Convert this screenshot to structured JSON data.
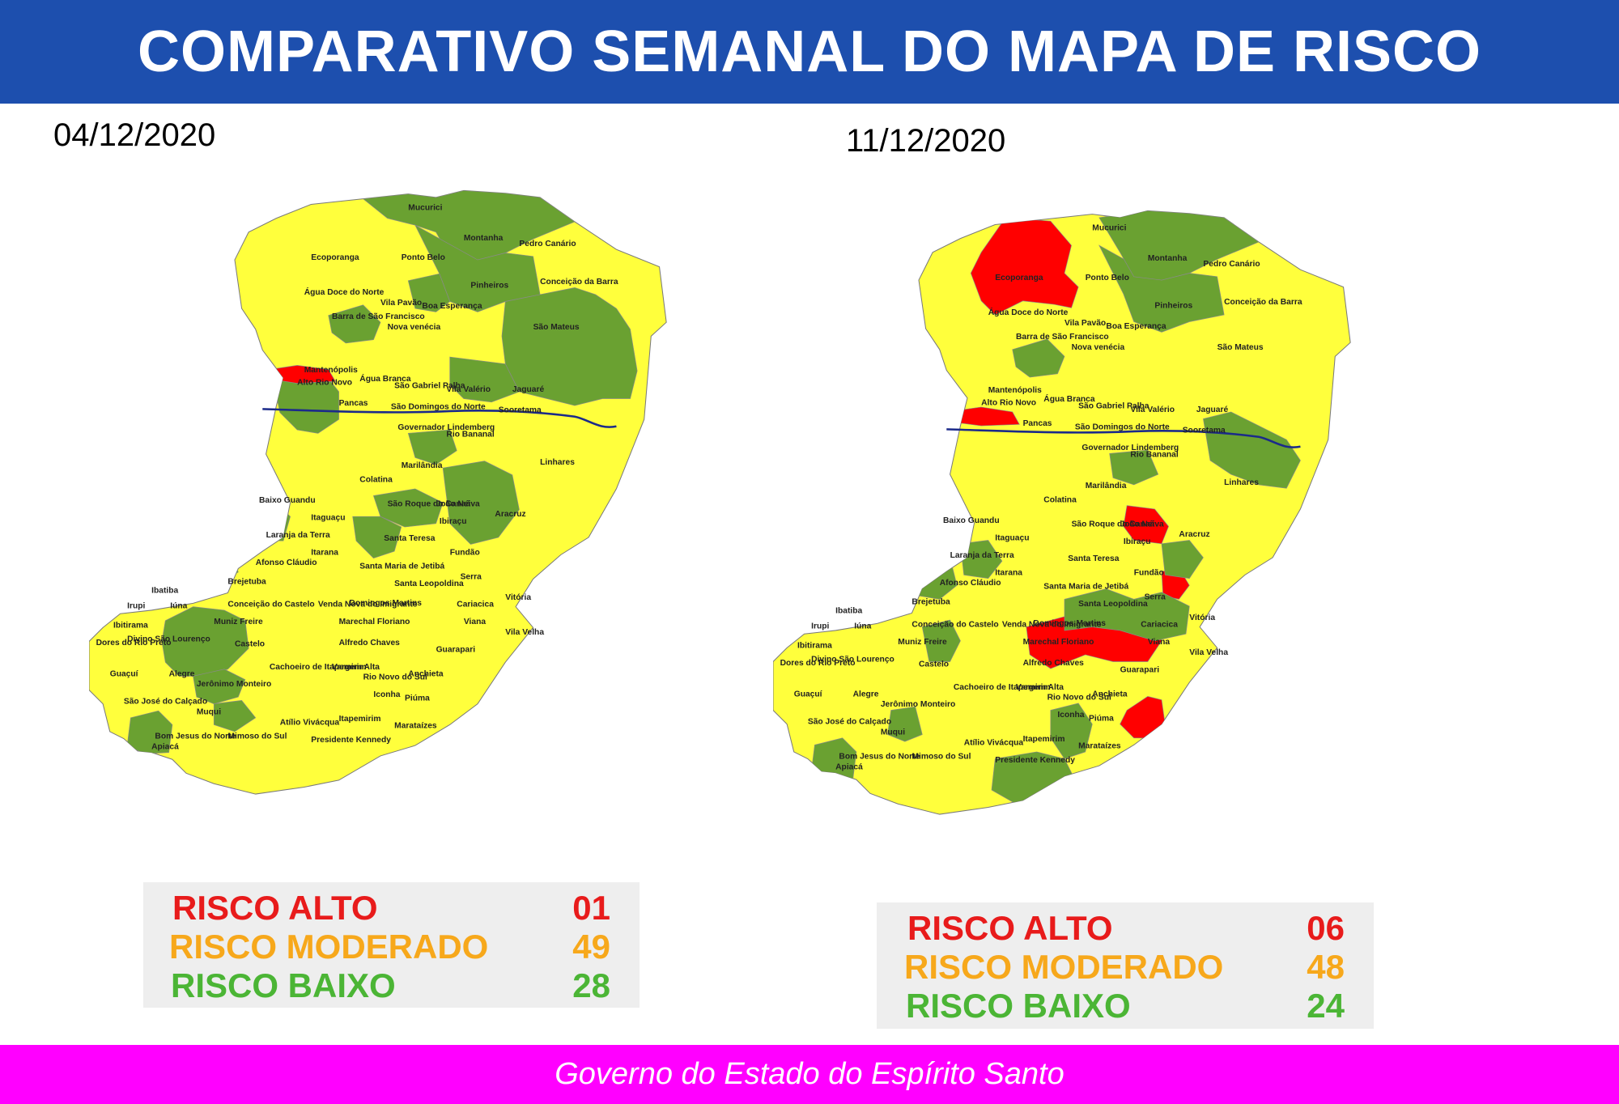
{
  "header": {
    "title": "COMPARATIVO SEMANAL DO MAPA DE RISCO"
  },
  "colors": {
    "header": "#1d4fae",
    "footer": "#ff00ff",
    "alto": "#e81b1b",
    "moderado": "#f7a81b",
    "baixo": "#4bb535",
    "map_yellow": "#ffff3c",
    "map_green": "#6aa131",
    "map_red": "#ff0000"
  },
  "maps": [
    {
      "date": "04/12/2020",
      "legend": [
        {
          "label": "RISCO ALTO",
          "value": "01"
        },
        {
          "label": "RISCO MODERADO",
          "value": "49"
        },
        {
          "label": "RISCO BAIXO",
          "value": "28"
        }
      ],
      "labels": [
        "Mucurici",
        "Montanha",
        "Pedro Canário",
        "Ecoporanga",
        "Ponto Belo",
        "Pinheiros",
        "Conceição da Barra",
        "Água Doce do Norte",
        "Vila Pavão",
        "Boa Esperança",
        "Barra de São Francisco",
        "Nova venécia",
        "São Mateus",
        "Mantenópolis",
        "Alto Rio Novo",
        "Água Branca",
        "São Gabriel Palha",
        "Vila Valério",
        "Jaguaré",
        "Pancas",
        "São Domingos do Norte",
        "Sooretama",
        "Governador Lindemberg",
        "Rio Bananal",
        "Linhares",
        "Marilândia",
        "Colatina",
        "Baixo Guandu",
        "São Roque do Canaã",
        "João Neiva",
        "Aracruz",
        "Itaguaçu",
        "Ibiraçu",
        "Laranja da Terra",
        "Santa Teresa",
        "Itarana",
        "Fundão",
        "Afonso Cláudio",
        "Santa Maria de Jetibá",
        "Serra",
        "Santa Leopoldina",
        "Brejetuba",
        "Ibatiba",
        "Vitória",
        "Irupi",
        "Iúna",
        "Conceição do Castelo",
        "Venda Nova do Imigrante",
        "Domingos Martins",
        "Cariacica",
        "Viana",
        "Ibitirama",
        "Muniz Freire",
        "Marechal Floriano",
        "Vila Velha",
        "Divino São Lourenço",
        "Dores do Rio Preto",
        "Castelo",
        "Alfredo Chaves",
        "Guarapari",
        "Guaçuí",
        "Alegre",
        "Cachoeiro de Itapemirim",
        "Vargem Alta",
        "Anchieta",
        "Jerônimo Monteiro",
        "Iconha",
        "Rio Novo do Sul",
        "Piúma",
        "São José do Calçado",
        "Muqui",
        "Atílio Vivácqua",
        "Itapemirim",
        "Bom Jesus do Norte",
        "Apiacá",
        "Mimoso do Sul",
        "Presidente Kennedy",
        "Marataízes"
      ]
    },
    {
      "date": "11/12/2020",
      "legend": [
        {
          "label": "RISCO ALTO",
          "value": "06"
        },
        {
          "label": "RISCO MODERADO",
          "value": "48"
        },
        {
          "label": "RISCO BAIXO",
          "value": "24"
        }
      ],
      "labels": [
        "Mucurici",
        "Montanha",
        "Pedro Canário",
        "Ecoporanga",
        "Ponto Belo",
        "Pinheiros",
        "Conceição da Barra",
        "Água Doce do Norte",
        "Vila Pavão",
        "Boa Esperança",
        "Barra de São Francisco",
        "Nova venécia",
        "São Mateus",
        "Mantenópolis",
        "Alto Rio Novo",
        "Água Branca",
        "São Gabriel Palha",
        "Vila Valério",
        "Jaguaré",
        "Pancas",
        "São Domingos do Norte",
        "Sooretama",
        "Governador Lindemberg",
        "Rio Bananal",
        "Linhares",
        "Marilândia",
        "Colatina",
        "Baixo Guandu",
        "São Roque do Canaã",
        "João Neiva",
        "Aracruz",
        "Itaguaçu",
        "Ibiraçu",
        "Laranja da Terra",
        "Santa Teresa",
        "Itarana",
        "Fundão",
        "Afonso Cláudio",
        "Santa Maria de Jetibá",
        "Serra",
        "Santa Leopoldina",
        "Brejetuba",
        "Ibatiba",
        "Vitória",
        "Irupi",
        "Iúna",
        "Conceição do Castelo",
        "Venda Nova do Imigrante",
        "Domingos Martins",
        "Cariacica",
        "Viana",
        "Ibitirama",
        "Muniz Freire",
        "Marechal Floriano",
        "Vila Velha",
        "Divino São Lourenço",
        "Dores do Rio Preto",
        "Castelo",
        "Alfredo Chaves",
        "Guarapari",
        "Guaçuí",
        "Alegre",
        "Cachoeiro de Itapemirim",
        "Vargem Alta",
        "Anchieta",
        "Jerônimo Monteiro",
        "Iconha",
        "Rio Novo do Sul",
        "Piúma",
        "São José do Calçado",
        "Muqui",
        "Atílio Vivácqua",
        "Itapemirim",
        "Bom Jesus do Norte",
        "Apiacá",
        "Mimoso do Sul",
        "Presidente Kennedy",
        "Marataízes"
      ]
    }
  ],
  "footer": {
    "text": "Governo do Estado do Espírito Santo"
  }
}
